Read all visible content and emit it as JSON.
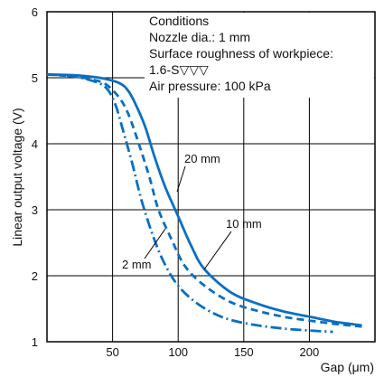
{
  "chart_data": {
    "type": "line",
    "xlabel": "Gap (μm)",
    "ylabel": "Linear output voltage (V)",
    "xlim": [
      0,
      250
    ],
    "ylim": [
      1,
      6
    ],
    "xticks": [
      50,
      100,
      150,
      200,
      250
    ],
    "yticks": [
      1,
      2,
      3,
      4,
      5,
      6
    ],
    "grid": true,
    "conditions": [
      "Conditions",
      "Nozzle dia.: 1 mm",
      "Surface roughness of workpiece:",
      "1.6-S▽▽▽",
      "Air pressure: 100 kPa"
    ],
    "series": [
      {
        "name": "20 mm",
        "style": "solid",
        "color": "#0a6fc2",
        "x": [
          0,
          20,
          40,
          55,
          62,
          68,
          75,
          82,
          90,
          100,
          110,
          120,
          140,
          160,
          180,
          200,
          220,
          240
        ],
        "y": [
          5.05,
          5.04,
          5.0,
          4.92,
          4.8,
          4.58,
          4.25,
          3.8,
          3.35,
          2.9,
          2.45,
          2.1,
          1.75,
          1.58,
          1.46,
          1.38,
          1.3,
          1.25
        ]
      },
      {
        "name": "10 mm",
        "style": "dashed",
        "color": "#0a6fc2",
        "x": [
          0,
          20,
          35,
          45,
          55,
          62,
          70,
          78,
          85,
          95,
          105,
          120,
          140,
          160,
          180,
          200,
          220,
          240
        ],
        "y": [
          5.05,
          5.02,
          4.97,
          4.9,
          4.7,
          4.45,
          4.0,
          3.5,
          3.0,
          2.55,
          2.15,
          1.85,
          1.6,
          1.47,
          1.38,
          1.32,
          1.27,
          1.23
        ]
      },
      {
        "name": "2 mm",
        "style": "dashdot",
        "color": "#0a6fc2",
        "x": [
          0,
          20,
          35,
          45,
          52,
          58,
          65,
          72,
          80,
          88,
          98,
          110,
          125,
          140,
          160,
          180,
          200,
          218
        ],
        "y": [
          5.05,
          5.02,
          4.95,
          4.85,
          4.6,
          4.2,
          3.7,
          3.15,
          2.65,
          2.25,
          1.9,
          1.65,
          1.45,
          1.33,
          1.25,
          1.2,
          1.17,
          1.15
        ]
      }
    ],
    "annotations": [
      "20 mm",
      "10 mm",
      "2 mm"
    ]
  }
}
